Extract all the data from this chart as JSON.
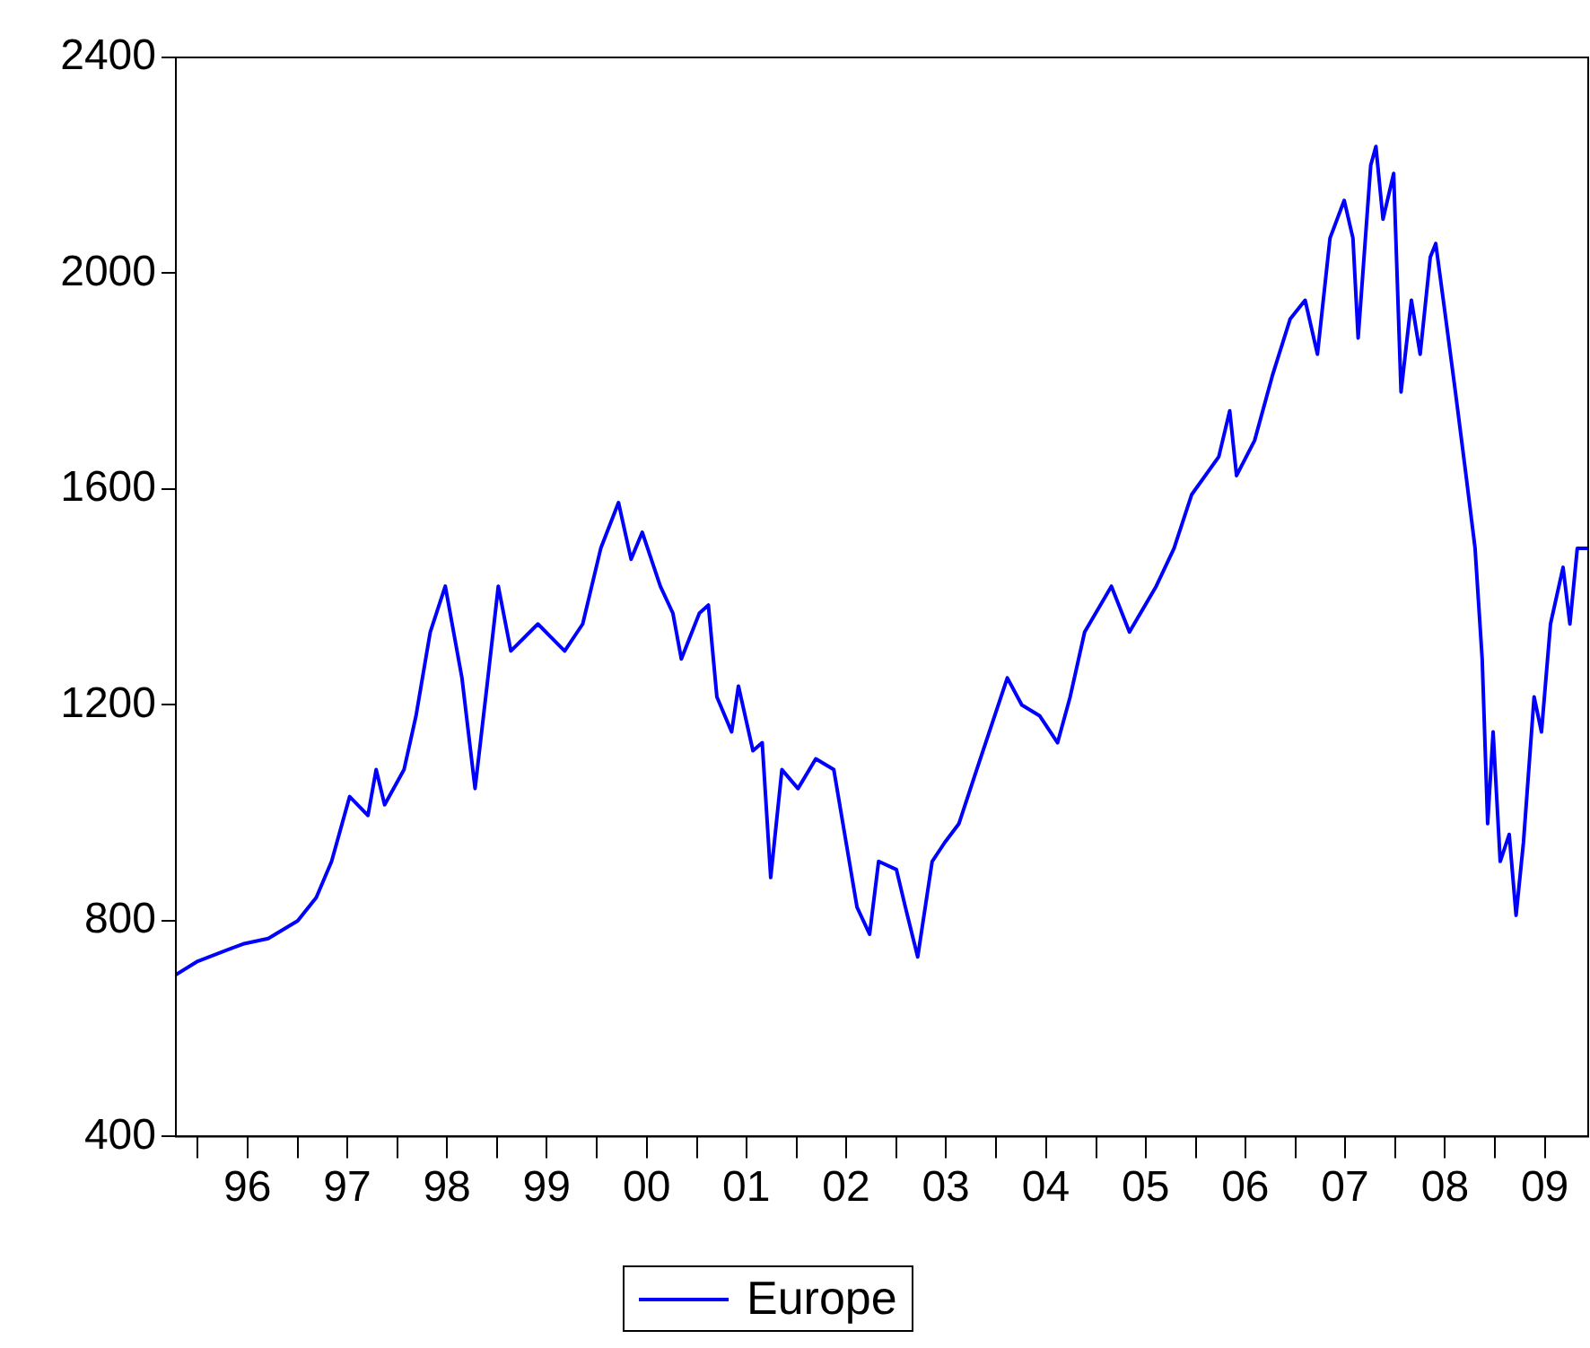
{
  "chart_data": {
    "type": "line",
    "legend": "bottom",
    "grid": false,
    "marker": "none",
    "line_style": "solid",
    "xlim": [
      "1995-10-13",
      "2009-12-07"
    ],
    "xticks": [
      {
        "value": "1996-01-01",
        "label": null
      },
      {
        "value": "1996-07-01",
        "label": "96"
      },
      {
        "value": "1997-01-01",
        "label": null
      },
      {
        "value": "1997-07-01",
        "label": "97"
      },
      {
        "value": "1998-01-01",
        "label": null
      },
      {
        "value": "1998-07-01",
        "label": "98"
      },
      {
        "value": "1999-01-01",
        "label": null
      },
      {
        "value": "1999-07-01",
        "label": "99"
      },
      {
        "value": "2000-01-01",
        "label": null
      },
      {
        "value": "2000-07-01",
        "label": "00"
      },
      {
        "value": "2001-01-01",
        "label": null
      },
      {
        "value": "2001-07-01",
        "label": "01"
      },
      {
        "value": "2002-01-01",
        "label": null
      },
      {
        "value": "2002-07-01",
        "label": "02"
      },
      {
        "value": "2003-01-01",
        "label": null
      },
      {
        "value": "2003-07-01",
        "label": "03"
      },
      {
        "value": "2004-01-01",
        "label": null
      },
      {
        "value": "2004-07-01",
        "label": "04"
      },
      {
        "value": "2005-01-01",
        "label": null
      },
      {
        "value": "2005-07-01",
        "label": "05"
      },
      {
        "value": "2006-01-01",
        "label": null
      },
      {
        "value": "2006-07-01",
        "label": "06"
      },
      {
        "value": "2007-01-01",
        "label": null
      },
      {
        "value": "2007-07-01",
        "label": "07"
      },
      {
        "value": "2008-01-01",
        "label": null
      },
      {
        "value": "2008-07-01",
        "label": "08"
      },
      {
        "value": "2009-01-01",
        "label": null
      },
      {
        "value": "2009-07-01",
        "label": "09"
      }
    ],
    "ylim": [
      400,
      2400
    ],
    "yticks": [
      400,
      800,
      1200,
      1600,
      2000,
      2400
    ],
    "x": [
      "1995-10-13",
      "1996-01-01",
      "1996-06-15",
      "1996-09-15",
      "1997-01-01",
      "1997-03-10",
      "1997-05-05",
      "1997-07-10",
      "1997-09-15",
      "1997-10-15",
      "1997-11-15",
      "1998-01-25",
      "1998-03-10",
      "1998-05-01",
      "1998-06-25",
      "1998-08-25",
      "1998-10-12",
      "1998-11-28",
      "1999-01-05",
      "1999-02-20",
      "1999-05-30",
      "1999-09-05",
      "1999-11-10",
      "2000-01-15",
      "2000-03-20",
      "2000-05-05",
      "2000-06-15",
      "2000-08-20",
      "2000-10-05",
      "2000-11-05",
      "2001-01-10",
      "2001-02-12",
      "2001-03-15",
      "2001-05-08",
      "2001-06-02",
      "2001-07-25",
      "2001-08-28",
      "2001-09-28",
      "2001-11-08",
      "2002-01-06",
      "2002-03-12",
      "2002-05-17",
      "2002-07-01",
      "2002-08-10",
      "2002-09-25",
      "2002-10-28",
      "2003-01-01",
      "2003-02-03",
      "2003-03-20",
      "2003-05-12",
      "2003-06-27",
      "2003-08-18",
      "2003-10-22",
      "2003-12-27",
      "2004-02-11",
      "2004-04-04",
      "2004-06-08",
      "2004-08-13",
      "2004-09-28",
      "2004-11-20",
      "2005-02-26",
      "2005-05-03",
      "2005-08-09",
      "2005-10-13",
      "2005-12-17",
      "2006-03-26",
      "2006-05-05",
      "2006-05-30",
      "2006-08-04",
      "2006-10-08",
      "2006-12-12",
      "2007-02-05",
      "2007-03-22",
      "2007-05-07",
      "2007-06-28",
      "2007-07-30",
      "2007-08-18",
      "2007-10-03",
      "2007-10-22",
      "2007-11-17",
      "2007-12-26",
      "2008-01-22",
      "2008-02-29",
      "2008-04-01",
      "2008-05-08",
      "2008-05-28",
      "2008-06-30",
      "2008-08-08",
      "2008-09-16",
      "2008-10-19",
      "2008-11-14",
      "2008-12-04",
      "2008-12-24",
      "2009-01-19",
      "2009-02-21",
      "2009-03-18",
      "2009-04-14",
      "2009-05-23",
      "2009-06-19",
      "2009-07-22",
      "2009-09-06",
      "2009-10-01",
      "2009-10-28",
      "2009-12-07"
    ],
    "series": [
      {
        "name": "Europe",
        "color": "#0000ff",
        "values": [
          700,
          725,
          757,
          767,
          800,
          843,
          910,
          1030,
          995,
          1080,
          1015,
          1080,
          1180,
          1335,
          1420,
          1250,
          1045,
          1250,
          1420,
          1300,
          1350,
          1300,
          1350,
          1490,
          1575,
          1470,
          1520,
          1420,
          1370,
          1285,
          1370,
          1385,
          1215,
          1150,
          1235,
          1115,
          1130,
          880,
          1080,
          1045,
          1100,
          1080,
          945,
          825,
          775,
          910,
          895,
          825,
          733,
          910,
          945,
          980,
          1080,
          1180,
          1250,
          1200,
          1180,
          1130,
          1215,
          1335,
          1420,
          1335,
          1420,
          1490,
          1590,
          1660,
          1745,
          1625,
          1690,
          1810,
          1915,
          1950,
          1850,
          2065,
          2135,
          2065,
          1880,
          2200,
          2235,
          2100,
          2185,
          1780,
          1950,
          1850,
          2030,
          2055,
          1930,
          1780,
          1625,
          1490,
          1285,
          980,
          1150,
          910,
          960,
          810,
          945,
          1215,
          1150,
          1350,
          1455,
          1350,
          1490,
          1490
        ]
      }
    ]
  }
}
